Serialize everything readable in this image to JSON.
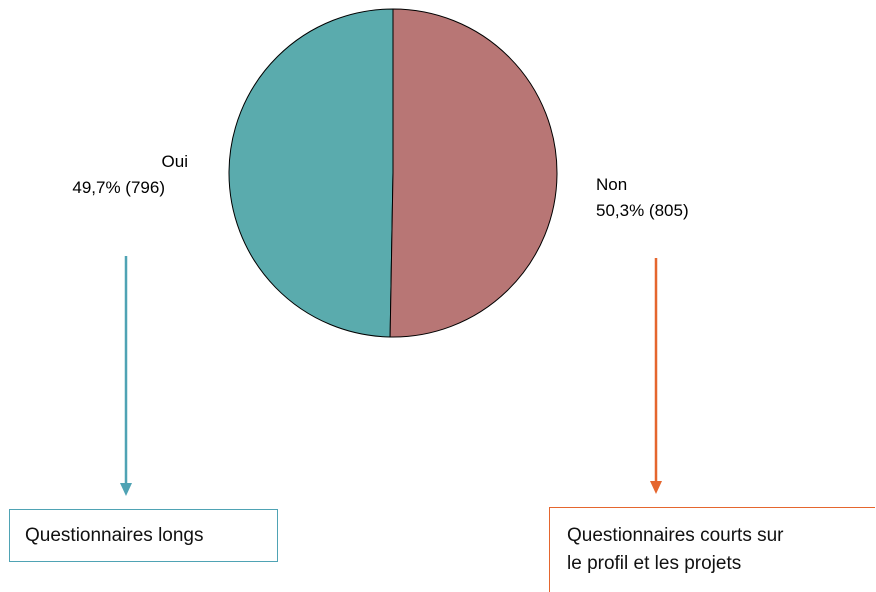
{
  "chart_data": {
    "type": "pie",
    "slices": [
      {
        "label": "Oui",
        "percent_label": "49,7% (796)",
        "value": 796,
        "percent": 49.7,
        "color": "#5aabad"
      },
      {
        "label": "Non",
        "percent_label": "50,3% (805)",
        "value": 805,
        "percent": 50.3,
        "color": "#b87675"
      }
    ]
  },
  "flow": {
    "oui_box": {
      "text": "Questionnaires longs",
      "color": "#4fa3b4"
    },
    "non_box": {
      "line1": "Questionnaires courts sur",
      "line2": "le profil et les projets",
      "color": "#e5662e"
    }
  }
}
